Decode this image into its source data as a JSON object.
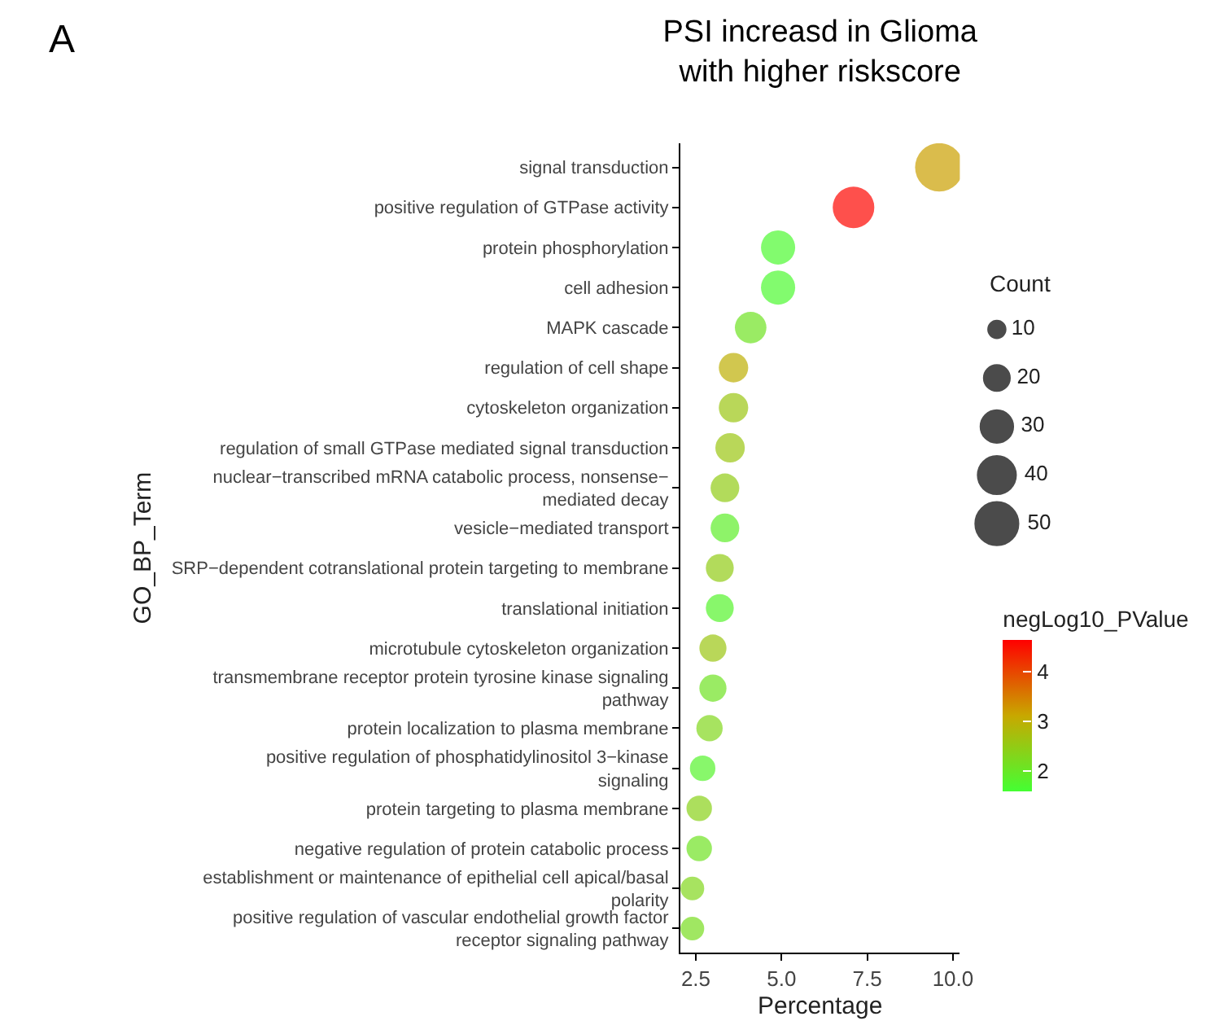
{
  "chart_data": {
    "type": "bubble",
    "title": "PSI increasd in Glioma\nwith higher riskscore",
    "xlabel": "Percentage",
    "ylabel": "GO_BP_Term",
    "legend_title": "Count",
    "clabel": "negLog10_PValue",
    "annotations": [
      "A"
    ],
    "categories": [
      "signal transduction",
      "positive regulation of GTPase activity",
      "protein phosphorylation",
      "cell adhesion",
      "MAPK cascade",
      "regulation of cell shape",
      "cytoskeleton organization",
      "regulation of small GTPase mediated signal transduction",
      "nuclear−transcribed mRNA catabolic process, nonsense−\nmediated decay",
      "vesicle−mediated transport",
      "SRP−dependent cotranslational protein targeting to membrane",
      "translational initiation",
      "microtubule cytoskeleton organization",
      "transmembrane receptor protein tyrosine kinase signaling\npathway",
      "protein localization to plasma membrane",
      "positive regulation of phosphatidylinositol 3−kinase\nsignaling",
      "protein targeting to plasma membrane",
      "negative regulation of protein catabolic process",
      "establishment or maintenance of epithelial cell apical/basal\npolarity",
      "positive regulation of vascular endothelial growth factor\nreceptor signaling pathway"
    ],
    "orientation": "horizontal",
    "values": [
      9.6,
      7.1,
      4.9,
      4.9,
      4.1,
      3.6,
      3.6,
      3.5,
      3.35,
      3.35,
      3.2,
      3.2,
      3.0,
      3.0,
      2.9,
      2.7,
      2.6,
      2.6,
      2.4,
      2.4
    ],
    "sizes": [
      54,
      40,
      27,
      27,
      23,
      20,
      20,
      20,
      19,
      19,
      18,
      18,
      17,
      17,
      16,
      15,
      15,
      15,
      13,
      13
    ],
    "size_legend": [
      10,
      20,
      30,
      40,
      50
    ],
    "cvalues": [
      3.2,
      4.6,
      1.7,
      1.7,
      2.1,
      3.0,
      2.6,
      2.6,
      2.5,
      1.9,
      2.5,
      1.8,
      2.6,
      2.1,
      2.3,
      1.8,
      2.4,
      2.1,
      2.3,
      2.2
    ],
    "clim": [
      1.6,
      4.65
    ],
    "cticks": [
      2,
      3,
      4
    ],
    "xlim": [
      2.05,
      10.2
    ],
    "xticks": [
      2.5,
      {
        "value": 5,
        "label": "5.0"
      },
      7.5,
      {
        "value": 10,
        "label": "10.0"
      }
    ],
    "marker": "circle"
  }
}
